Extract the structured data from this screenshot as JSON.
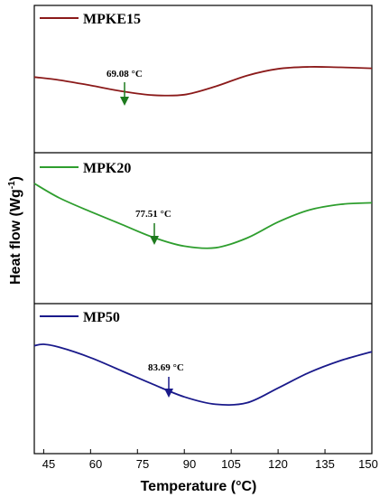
{
  "chart_data": {
    "type": "line",
    "xlabel": "Temperature (°C)",
    "ylabel_main": "Heat flow (Wg",
    "ylabel_sup": "-1",
    "ylabel_close": ")",
    "xlim": [
      42,
      150
    ],
    "xticks": [
      "45",
      "60",
      "75",
      "90",
      "105",
      "120",
      "135",
      "150"
    ],
    "panels": [
      {
        "name": "MPKE15",
        "color": "#8b1a1a",
        "annotation": "69.08 °C",
        "annotation_x": 69.08,
        "x": [
          42,
          50,
          60,
          70,
          80,
          90,
          100,
          110,
          120,
          130,
          140,
          150
        ],
        "y": [
          0.79,
          0.73,
          0.62,
          0.5,
          0.42,
          0.43,
          0.6,
          0.82,
          0.96,
          1.0,
          0.99,
          0.97
        ]
      },
      {
        "name": "MPK20",
        "color": "#2e9e2e",
        "annotation": "77.51 °C",
        "annotation_x": 77.51,
        "x": [
          42,
          50,
          60,
          70,
          80,
          90,
          100,
          110,
          120,
          130,
          140,
          150
        ],
        "y": [
          1.0,
          0.82,
          0.65,
          0.49,
          0.33,
          0.22,
          0.2,
          0.32,
          0.52,
          0.67,
          0.74,
          0.76
        ]
      },
      {
        "name": "MP50",
        "color": "#1a1a8b",
        "annotation": "83.69 °C",
        "annotation_x": 83.69,
        "x": [
          42,
          45,
          50,
          60,
          70,
          80,
          90,
          100,
          110,
          120,
          130,
          140,
          150
        ],
        "y": [
          0.98,
          1.0,
          0.96,
          0.82,
          0.64,
          0.46,
          0.29,
          0.19,
          0.21,
          0.41,
          0.62,
          0.78,
          0.9
        ]
      }
    ]
  }
}
